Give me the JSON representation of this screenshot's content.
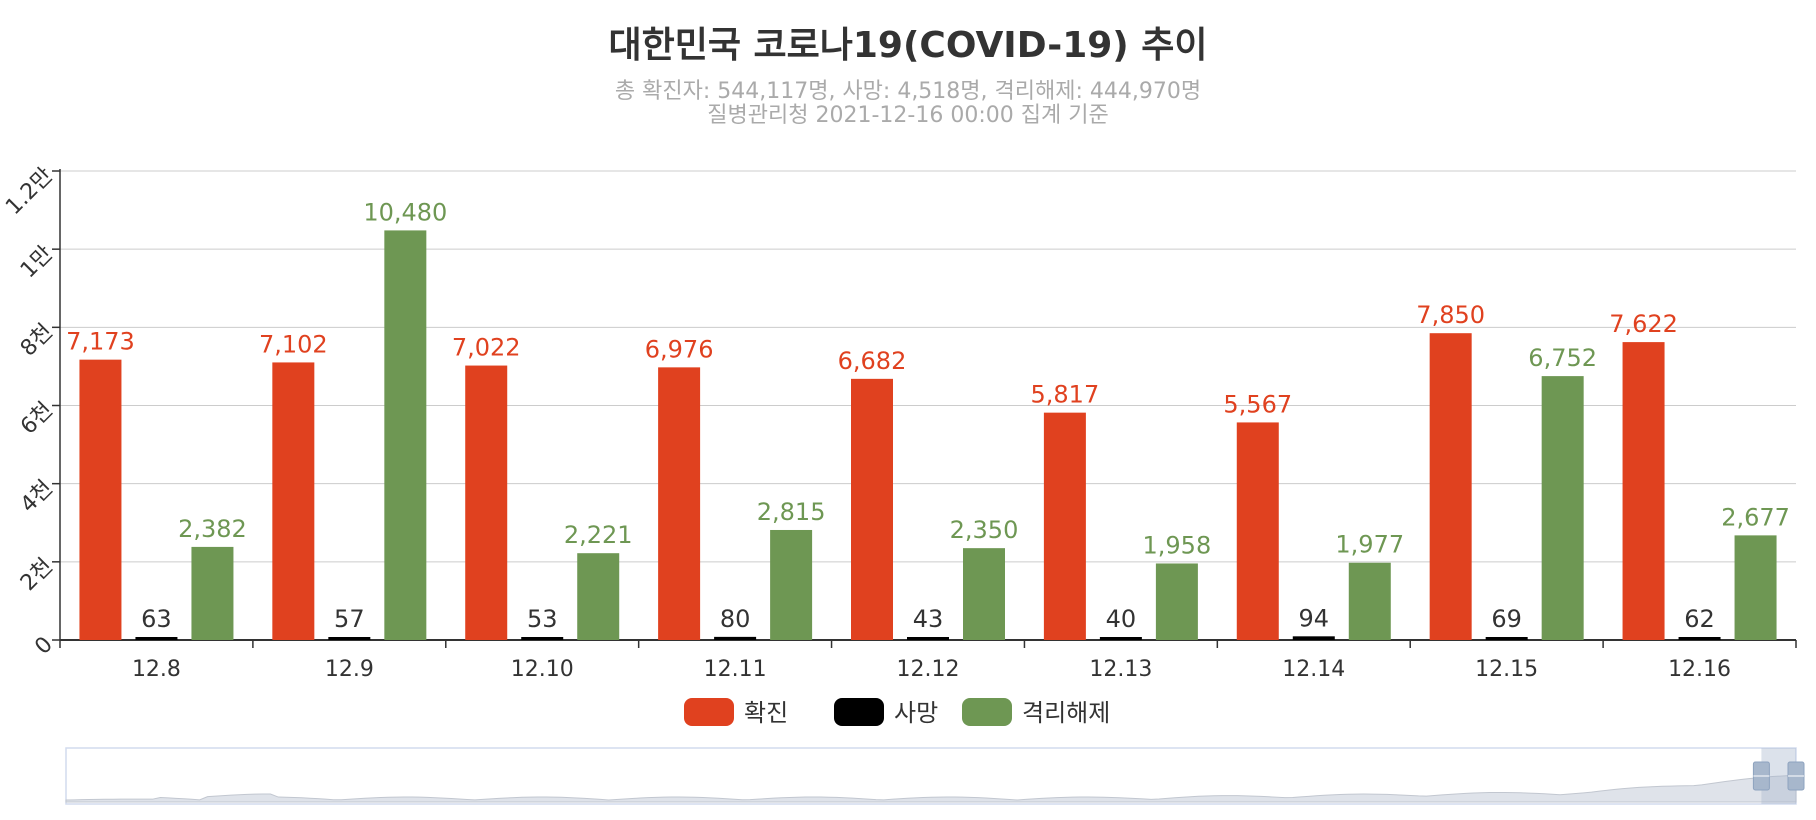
{
  "title": "대한민국 코로나19(COVID-19) 추이",
  "subtitle_lines": [
    "총 확진자: 544,117명, 사망: 4,518명, 격리해제: 444,970명",
    "질병관리청 2021-12-16 00:00 집계 기준"
  ],
  "chart_data": {
    "type": "bar",
    "categories": [
      "12.8",
      "12.9",
      "12.10",
      "12.11",
      "12.12",
      "12.13",
      "12.14",
      "12.15",
      "12.16"
    ],
    "series": [
      {
        "name": "확진",
        "color": "#e0411f",
        "values": [
          7173,
          7102,
          7022,
          6976,
          6682,
          5817,
          5567,
          7850,
          7622
        ],
        "labels": [
          "7,173",
          "7,102",
          "7,022",
          "6,976",
          "6,682",
          "5,817",
          "5,567",
          "7,850",
          "7,622"
        ]
      },
      {
        "name": "사망",
        "color": "#000000",
        "values": [
          63,
          57,
          53,
          80,
          43,
          40,
          94,
          69,
          62
        ],
        "labels": [
          "63",
          "57",
          "53",
          "80",
          "43",
          "40",
          "94",
          "69",
          "62"
        ]
      },
      {
        "name": "격리해제",
        "color": "#6e9753",
        "values": [
          2382,
          10480,
          2221,
          2815,
          2350,
          1958,
          1977,
          6752,
          2677
        ],
        "labels": [
          "2,382",
          "10,480",
          "2,221",
          "2,815",
          "2,350",
          "1,958",
          "1,977",
          "6,752",
          "2,677"
        ]
      }
    ],
    "ylim": [
      0,
      12000
    ],
    "y_ticks": [
      {
        "value": 0,
        "label": "0"
      },
      {
        "value": 2000,
        "label": "2천"
      },
      {
        "value": 4000,
        "label": "4천"
      },
      {
        "value": 6000,
        "label": "6천"
      },
      {
        "value": 8000,
        "label": "8천"
      },
      {
        "value": 10000,
        "label": "1만"
      },
      {
        "value": 12000,
        "label": "1.2만"
      }
    ],
    "grid": true,
    "legend_position": "bottom-center",
    "data_zoom": {
      "range_start_pct": 98,
      "range_end_pct": 100
    }
  }
}
